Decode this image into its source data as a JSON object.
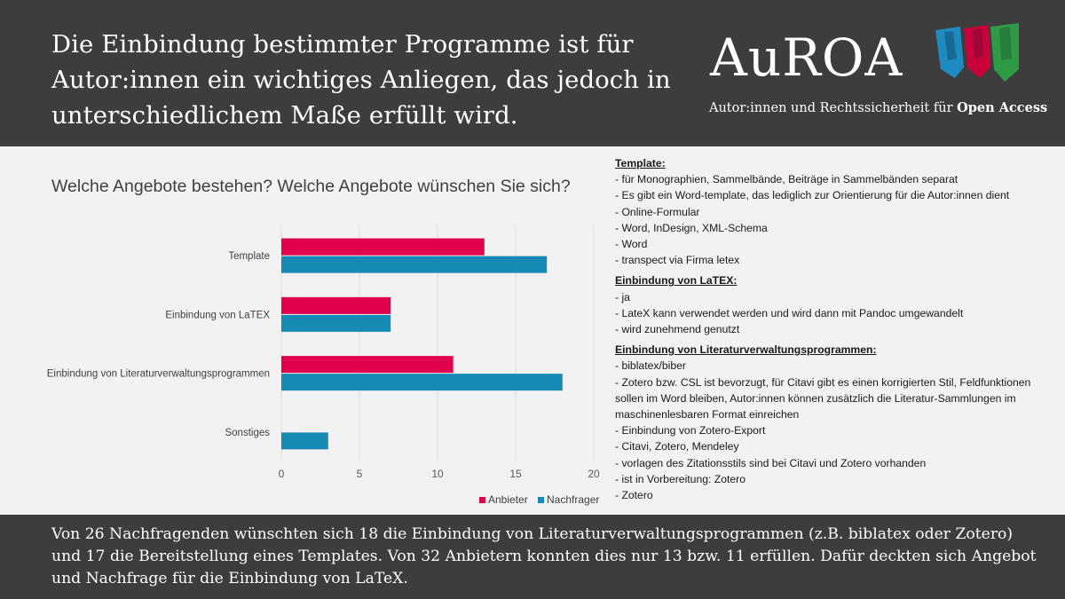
{
  "header": {
    "headline": "Die Einbindung bestimmter Programme ist für Autor:innen ein wichtiges Anliegen, das jedoch in unterschiedlichem Maße erfüllt wird.",
    "logo_text": "AuROA",
    "tagline_prefix": "Autor:innen und Rechtssicherheit für ",
    "tagline_bold": "Open Access"
  },
  "chart_data": {
    "type": "bar",
    "orientation": "horizontal",
    "title": "Welche Angebote bestehen? Welche Angebote wünschen Sie sich?",
    "categories": [
      "Template",
      "Einbindung von LaTEX",
      "Einbindung von Literaturverwaltungsprogrammen",
      "Sonstiges"
    ],
    "series": [
      {
        "name": "Anbieter",
        "color": "#e0004d",
        "values": [
          13,
          7,
          11,
          0
        ]
      },
      {
        "name": "Nachfrager",
        "color": "#1689b5",
        "values": [
          17,
          7,
          18,
          3
        ]
      }
    ],
    "xlim": [
      0,
      20
    ],
    "xticks": [
      "0",
      "5",
      "10",
      "15",
      "20"
    ],
    "grid": true,
    "legend_position": "bottom"
  },
  "notes": [
    {
      "heading": "Template:",
      "items": [
        "- für Monographien, Sammelbände, Beiträge in Sammelbänden separat",
        "- Es gibt ein Word-template, das lediglich zur Orientierung für die Autor:innen dient",
        "- Online-Formular",
        "- Word, InDesign, XML-Schema",
        "- Word",
        "- transpect via Firma letex"
      ]
    },
    {
      "heading": "Einbindung von LaTEX:",
      "items": [
        "- ja",
        "- LateX kann verwendet werden und wird dann mit Pandoc umgewandelt",
        "- wird zunehmend genutzt"
      ]
    },
    {
      "heading": "Einbindung von Literaturverwaltungsprogrammen:",
      "items": [
        "- biblatex/biber",
        "- Zotero bzw. CSL ist bevorzugt, für Citavi gibt es einen korrigierten Stil, Feldfunktionen sollen im Word bleiben, Autor:innen können zusätzlich die Literatur-Sammlungen im maschinenlesbaren Format einreichen",
        "- Einbindung von Zotero-Export",
        "- Citavi, Zotero, Mendeley",
        "- vorlagen des Zitationsstils sind bei Citavi und Zotero vorhanden",
        "- ist in Vorbereitung: Zotero",
        "- Zotero"
      ]
    }
  ],
  "footer": {
    "text": "Von 26 Nachfragenden wünschten sich 18 die Einbindung von Literaturverwaltungsprogrammen (z.B. biblatex oder Zotero) und 17 die Bereitstellung eines Templates. Von 32 Anbietern konnten dies nur 13 bzw. 11 erfüllen. Dafür deckten sich Angebot und Nachfrage für die Einbindung von LaTeX."
  }
}
